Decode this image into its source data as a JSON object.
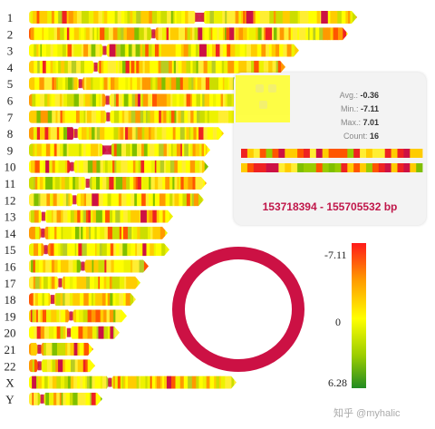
{
  "ideogram": {
    "chromosomes": [
      {
        "name": "1",
        "len": 362,
        "cen": 0.52
      },
      {
        "name": "2",
        "len": 352,
        "cen": 0.39
      },
      {
        "name": "3",
        "len": 298,
        "cen": 0.28
      },
      {
        "name": "4",
        "len": 283,
        "cen": 0.26
      },
      {
        "name": "5",
        "len": 270,
        "cen": 0.21
      },
      {
        "name": "6",
        "len": 255,
        "cen": 0.34
      },
      {
        "name": "7",
        "len": 236,
        "cen": 0.37
      },
      {
        "name": "8",
        "len": 215,
        "cen": 0.24
      },
      {
        "name": "9",
        "len": 200,
        "cen": 0.43
      },
      {
        "name": "10",
        "len": 198,
        "cen": 0.24
      },
      {
        "name": "11",
        "len": 196,
        "cen": 0.33
      },
      {
        "name": "12",
        "len": 193,
        "cen": 0.26
      },
      {
        "name": "13",
        "len": 159,
        "cen": 0.1
      },
      {
        "name": "14",
        "len": 153,
        "cen": 0.1
      },
      {
        "name": "15",
        "len": 155,
        "cen": 0.12
      },
      {
        "name": "16",
        "len": 132,
        "cen": 0.45
      },
      {
        "name": "17",
        "len": 123,
        "cen": 0.28
      },
      {
        "name": "18",
        "len": 118,
        "cen": 0.22
      },
      {
        "name": "19",
        "len": 108,
        "cen": 0.43
      },
      {
        "name": "20",
        "len": 100,
        "cen": 0.44
      },
      {
        "name": "21",
        "len": 71,
        "cen": 0.16
      },
      {
        "name": "22",
        "len": 73,
        "cen": 0.16
      },
      {
        "name": "X",
        "len": 229,
        "cen": 0.39
      },
      {
        "name": "Y",
        "len": 81,
        "cen": 0.18
      }
    ]
  },
  "tooltip": {
    "avg_label": "Avg.:",
    "avg_value": "-0.36",
    "min_label": "Min.:",
    "min_value": "-7.11",
    "max_label": "Max.:",
    "max_value": "7.01",
    "count_label": "Count:",
    "count_value": "16",
    "range": "153718394 - 155705532 bp"
  },
  "legend": {
    "top_label": "-7.11",
    "mid_label": "0",
    "bottom_label": "6.28",
    "colors": [
      "#ff1a1a",
      "#ff9900",
      "#ffff00",
      "#99cc00",
      "#228b22"
    ]
  },
  "colors": {
    "accent": "#cc1144"
  },
  "watermark": "知乎 @myhalic"
}
